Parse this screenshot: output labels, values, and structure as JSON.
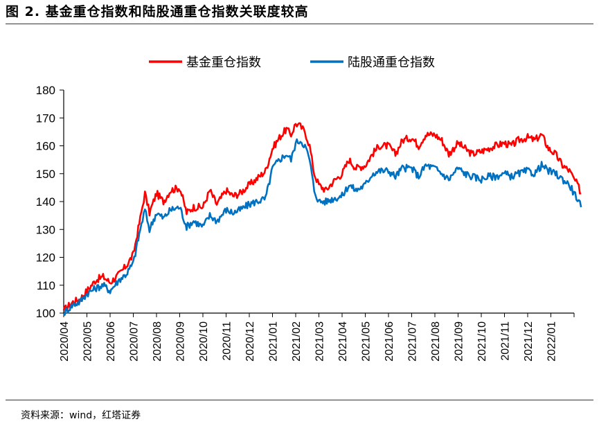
{
  "title": "图 2. 基金重仓指数和陆股通重仓指数关联度较高",
  "source": "资料来源：wind，红塔证券",
  "chart_data": {
    "type": "line",
    "title": "图 2. 基金重仓指数和陆股通重仓指数关联度较高",
    "xlabel": "",
    "ylabel": "",
    "ylim": [
      100,
      180
    ],
    "yticks": [
      "100",
      "110",
      "120",
      "130",
      "140",
      "150",
      "160",
      "170",
      "180"
    ],
    "x": [
      "2020/04",
      "2020/05",
      "2020/06",
      "2020/07",
      "2020/08",
      "2020/09",
      "2020/10",
      "2020/11",
      "2020/12",
      "2021/01",
      "2021/02",
      "2021/03",
      "2021/04",
      "2021/05",
      "2021/06",
      "2021/07",
      "2021/08",
      "2021/09",
      "2021/10",
      "2021/11",
      "2021/12",
      "2022/01"
    ],
    "legend": "top-center",
    "grid": false,
    "series": [
      {
        "name": "基金重仓指数",
        "color": "#ff0000",
        "values": [
          [
            0,
            101
          ],
          [
            0.4,
            104
          ],
          [
            0.7,
            105
          ],
          [
            1,
            108
          ],
          [
            1.4,
            112
          ],
          [
            1.7,
            113
          ],
          [
            2,
            111
          ],
          [
            2.4,
            114
          ],
          [
            2.7,
            117
          ],
          [
            3,
            121
          ],
          [
            3.3,
            134
          ],
          [
            3.5,
            143
          ],
          [
            3.7,
            136
          ],
          [
            4,
            143
          ],
          [
            4.3,
            140
          ],
          [
            4.6,
            144
          ],
          [
            5,
            145
          ],
          [
            5.3,
            136
          ],
          [
            5.6,
            138
          ],
          [
            6,
            138
          ],
          [
            6.3,
            144
          ],
          [
            6.6,
            139
          ],
          [
            7,
            144
          ],
          [
            7.3,
            142
          ],
          [
            7.6,
            143
          ],
          [
            8,
            146
          ],
          [
            8.3,
            148
          ],
          [
            8.7,
            151
          ],
          [
            9,
            159
          ],
          [
            9.3,
            163
          ],
          [
            9.6,
            166
          ],
          [
            9.8,
            164
          ],
          [
            10,
            168
          ],
          [
            10.2,
            167
          ],
          [
            10.4,
            165
          ],
          [
            10.6,
            160
          ],
          [
            10.8,
            150
          ],
          [
            11,
            146
          ],
          [
            11.3,
            144
          ],
          [
            11.6,
            147
          ],
          [
            12,
            150
          ],
          [
            12.3,
            155
          ],
          [
            12.6,
            152
          ],
          [
            13,
            153
          ],
          [
            13.3,
            157
          ],
          [
            13.6,
            160
          ],
          [
            14,
            160
          ],
          [
            14.3,
            157
          ],
          [
            14.6,
            162
          ],
          [
            15,
            163
          ],
          [
            15.3,
            160
          ],
          [
            15.6,
            164
          ],
          [
            16,
            164
          ],
          [
            16.3,
            162
          ],
          [
            16.6,
            157
          ],
          [
            17,
            161
          ],
          [
            17.3,
            159
          ],
          [
            17.6,
            157
          ],
          [
            18,
            158
          ],
          [
            18.3,
            159
          ],
          [
            18.6,
            160
          ],
          [
            19,
            161
          ],
          [
            19.3,
            160
          ],
          [
            19.6,
            162
          ],
          [
            20,
            163
          ],
          [
            20.3,
            162
          ],
          [
            20.6,
            164
          ],
          [
            20.9,
            159
          ],
          [
            21.2,
            157
          ],
          [
            21.5,
            153
          ],
          [
            21.8,
            151
          ],
          [
            22,
            148
          ],
          [
            22.15,
            146
          ],
          [
            22.3,
            143
          ]
        ]
      },
      {
        "name": "陆股通重仓指数",
        "color": "#0070c0",
        "values": [
          [
            0,
            100
          ],
          [
            0.4,
            103
          ],
          [
            0.7,
            104
          ],
          [
            1,
            107
          ],
          [
            1.4,
            109
          ],
          [
            1.7,
            110
          ],
          [
            2,
            108
          ],
          [
            2.4,
            112
          ],
          [
            2.7,
            114
          ],
          [
            3,
            118
          ],
          [
            3.3,
            130
          ],
          [
            3.5,
            137
          ],
          [
            3.7,
            130
          ],
          [
            4,
            136
          ],
          [
            4.3,
            134
          ],
          [
            4.6,
            137
          ],
          [
            5,
            138
          ],
          [
            5.3,
            131
          ],
          [
            5.6,
            133
          ],
          [
            6,
            131
          ],
          [
            6.3,
            135
          ],
          [
            6.6,
            133
          ],
          [
            7,
            137
          ],
          [
            7.3,
            136
          ],
          [
            7.6,
            137
          ],
          [
            8,
            139
          ],
          [
            8.3,
            140
          ],
          [
            8.7,
            141
          ],
          [
            9,
            152
          ],
          [
            9.3,
            155
          ],
          [
            9.6,
            157
          ],
          [
            9.8,
            155
          ],
          [
            10,
            161
          ],
          [
            10.2,
            162
          ],
          [
            10.4,
            160
          ],
          [
            10.6,
            155
          ],
          [
            10.8,
            144
          ],
          [
            11,
            140
          ],
          [
            11.3,
            140
          ],
          [
            11.6,
            141
          ],
          [
            12,
            142
          ],
          [
            12.3,
            146
          ],
          [
            12.6,
            144
          ],
          [
            13,
            146
          ],
          [
            13.3,
            150
          ],
          [
            13.6,
            151
          ],
          [
            14,
            151
          ],
          [
            14.3,
            149
          ],
          [
            14.6,
            152
          ],
          [
            15,
            152
          ],
          [
            15.3,
            149
          ],
          [
            15.6,
            153
          ],
          [
            16,
            152
          ],
          [
            16.3,
            150
          ],
          [
            16.6,
            148
          ],
          [
            17,
            152
          ],
          [
            17.3,
            150
          ],
          [
            17.6,
            149
          ],
          [
            18,
            148
          ],
          [
            18.3,
            149
          ],
          [
            18.6,
            149
          ],
          [
            19,
            150
          ],
          [
            19.3,
            149
          ],
          [
            19.6,
            150
          ],
          [
            20,
            151
          ],
          [
            20.3,
            150
          ],
          [
            20.6,
            153
          ],
          [
            20.9,
            151
          ],
          [
            21.2,
            150
          ],
          [
            21.5,
            148
          ],
          [
            21.8,
            146
          ],
          [
            22,
            143
          ],
          [
            22.15,
            141
          ],
          [
            22.3,
            138
          ]
        ]
      }
    ]
  }
}
